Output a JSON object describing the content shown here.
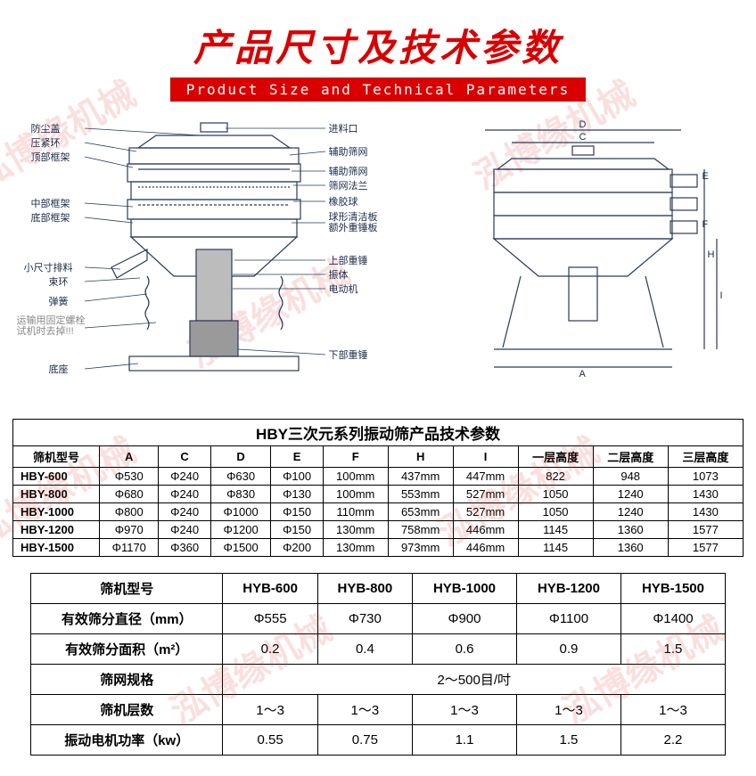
{
  "header": {
    "main_title": "产品尺寸及技术参数",
    "subtitle": "Product Size and Technical Parameters",
    "title_color": "#d80000",
    "subtitle_bg": "#d80000",
    "subtitle_color": "#ffffff"
  },
  "watermark": {
    "text": "泓博缘机械",
    "badge": "HBY",
    "color_rgba": "rgba(220,40,40,0.15)"
  },
  "diagram_left": {
    "labels_left": [
      "防尘盖",
      "压紧环",
      "顶部框架",
      "中部框架",
      "底部框架",
      "小尺寸排料",
      "束环",
      "弹簧",
      "运输用固定螺栓\n试机时去掉!!!",
      "底座"
    ],
    "labels_right": [
      "进料口",
      "辅助筛网",
      "辅助筛网",
      "筛网法兰",
      "橡胶球",
      "球形清洁板\n额外重锤板",
      "上部重锤",
      "振体",
      "电动机",
      "下部重锤"
    ]
  },
  "diagram_right": {
    "dim_labels": [
      "D",
      "C",
      "E",
      "F",
      "H",
      "I",
      "A"
    ]
  },
  "table1": {
    "title": "HBY三次元系列振动筛产品技术参数",
    "columns": [
      "筛机型号",
      "A",
      "C",
      "D",
      "E",
      "F",
      "H",
      "I",
      "一层高度",
      "二层高度",
      "三层高度"
    ],
    "rows": [
      [
        "HBY-600",
        "Φ530",
        "Φ240",
        "Φ630",
        "Φ100",
        "100mm",
        "437mm",
        "447mm",
        "822",
        "948",
        "1073"
      ],
      [
        "HBY-800",
        "Φ680",
        "Φ240",
        "Φ830",
        "Φ130",
        "100mm",
        "553mm",
        "527mm",
        "1050",
        "1240",
        "1430"
      ],
      [
        "HBY-1000",
        "Φ800",
        "Φ240",
        "Φ1000",
        "Φ150",
        "110mm",
        "653mm",
        "527mm",
        "1050",
        "1240",
        "1430"
      ],
      [
        "HBY-1200",
        "Φ970",
        "Φ240",
        "Φ1200",
        "Φ150",
        "130mm",
        "758mm",
        "446mm",
        "1145",
        "1360",
        "1577"
      ],
      [
        "HBY-1500",
        "Φ1170",
        "Φ360",
        "Φ1500",
        "Φ200",
        "130mm",
        "973mm",
        "446mm",
        "1145",
        "1360",
        "1577"
      ]
    ]
  },
  "table2": {
    "columns": [
      "筛机型号",
      "HYB-600",
      "HYB-800",
      "HYB-1000",
      "HYB-1200",
      "HYB-1500"
    ],
    "rows": [
      {
        "label": "有效筛分直径（mm）",
        "cells": [
          "Φ555",
          "Φ730",
          "Φ900",
          "Φ1100",
          "Φ1400"
        ]
      },
      {
        "label": "有效筛分面积（m²）",
        "cells": [
          "0.2",
          "0.4",
          "0.6",
          "0.9",
          "1.5"
        ]
      },
      {
        "label": "筛网规格",
        "cells_merged": "2～500目/吋"
      },
      {
        "label": "筛机层数",
        "cells": [
          "1～3",
          "1～3",
          "1～3",
          "1～3",
          "1～3"
        ]
      },
      {
        "label": "振动电机功率（kw）",
        "cells": [
          "0.55",
          "0.75",
          "1.1",
          "1.5",
          "2.2"
        ]
      }
    ]
  }
}
